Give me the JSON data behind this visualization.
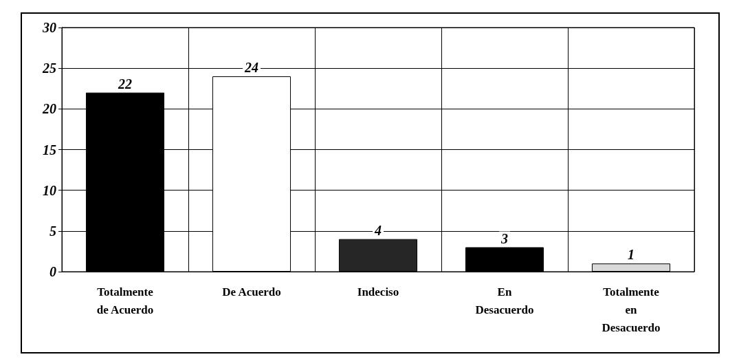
{
  "chart_data": {
    "type": "bar",
    "categories": [
      "Totalmente\nde Acuerdo",
      "De Acuerdo",
      "Indeciso",
      "En\nDesacuerdo",
      "Totalmente\nen\nDesacuerdo"
    ],
    "values": [
      22,
      24,
      4,
      3,
      1
    ],
    "colors": [
      "#000000",
      "#ffffff",
      "#262626",
      "#000000",
      "#d9d9d9"
    ],
    "ylim": [
      0,
      30
    ],
    "yticks": [
      0,
      5,
      10,
      15,
      20,
      25,
      30
    ],
    "grid": true,
    "data_labels": true
  }
}
